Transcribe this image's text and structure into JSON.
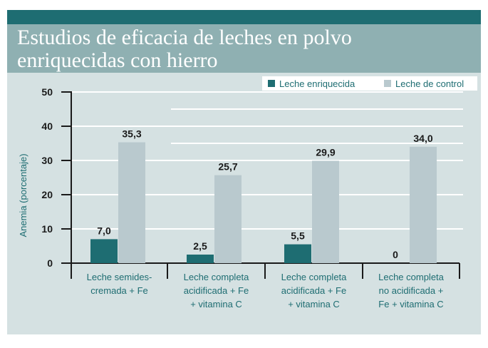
{
  "title": "Estudios de eficacia de leches en polvo\nenriquecidas con hierro",
  "chart_data": {
    "type": "bar",
    "categories": [
      [
        "Leche semides-",
        "cremada + Fe"
      ],
      [
        "Leche completa",
        "acidificada + Fe",
        "+ vitamina C"
      ],
      [
        "Leche completa",
        "acidificada + Fe",
        "+ vitamina C"
      ],
      [
        "Leche completa",
        "no acidificada +",
        "Fe + vitamina C"
      ]
    ],
    "series": [
      {
        "name": "Leche enriquecida",
        "color": "#1e6d72",
        "values": [
          7.0,
          2.5,
          5.5,
          0
        ],
        "labels": [
          "7,0",
          "2,5",
          "5,5",
          "0"
        ]
      },
      {
        "name": "Leche de control",
        "color": "#b9c9ce",
        "values": [
          35.3,
          25.7,
          29.9,
          34.0
        ],
        "labels": [
          "35,3",
          "25,7",
          "29,9",
          "34,0"
        ]
      }
    ],
    "ylabel": "Anemia (porcentaje)",
    "ylim": [
      0,
      50
    ],
    "yticks": [
      0,
      10,
      20,
      30,
      40,
      50
    ],
    "grid": true,
    "legend": "top-right"
  }
}
